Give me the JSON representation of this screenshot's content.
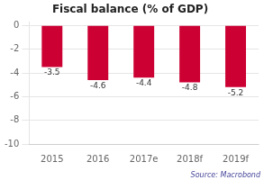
{
  "chart_data": {
    "type": "bar",
    "title": "Fiscal balance (% of GDP)",
    "categories": [
      "2015",
      "2016",
      "2017e",
      "2018f",
      "2019f"
    ],
    "values": [
      -3.5,
      -4.6,
      -4.4,
      -4.8,
      -5.2
    ],
    "color": "#cc0033",
    "ylim": [
      -10,
      0.3
    ],
    "yticks": [
      0,
      -2,
      -4,
      -6,
      -8,
      -10
    ],
    "grid": true,
    "data_labels": true,
    "annotations": [
      "Source: Macrobond"
    ]
  }
}
